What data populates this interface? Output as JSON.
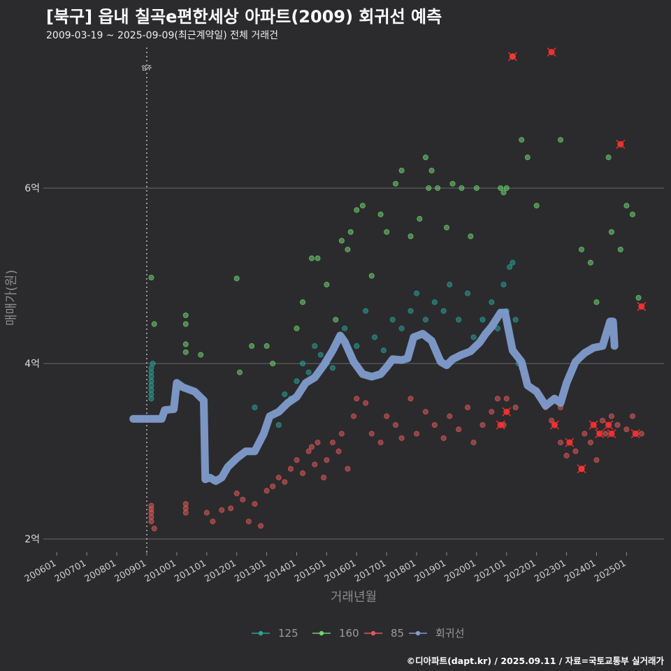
{
  "title": "[북구] 읍내 칠곡e편한세상 아파트(2009) 회귀선 예측",
  "subtitle": "2009-03-19 ~ 2025-09-09(최근계약일) 전체 거래건",
  "credit": "©디아파트(dapt.kr) / 2025.09.11 / 자료=국토교통부 실거래가",
  "chart_data": {
    "type": "scatter",
    "xlabel": "거래년월",
    "ylabel": "매매가(원)",
    "x_ticks": [
      "200601",
      "200701",
      "200801",
      "200901",
      "201001",
      "201101",
      "201201",
      "201301",
      "201401",
      "201501",
      "201601",
      "201701",
      "201801",
      "201901",
      "202001",
      "202101",
      "202201",
      "202301",
      "202401",
      "202501"
    ],
    "y_ticks": [
      {
        "value": 2,
        "label": "2억"
      },
      {
        "value": 4,
        "label": "4억"
      },
      {
        "value": 6,
        "label": "6억"
      }
    ],
    "xlim": [
      2005.55,
      2026.25
    ],
    "ylim": [
      1.85,
      7.65
    ],
    "grid": true,
    "legend_position": "bottom",
    "annotation": {
      "x": 2009.0,
      "label": "입주"
    },
    "colors": {
      "125": "#2aa198",
      "160": "#6fd36f",
      "85": "#e05a5a",
      "회귀선": "#7f9ccc"
    },
    "series": [
      {
        "name": "125",
        "points": [
          [
            2009.15,
            3.95
          ],
          [
            2009.15,
            3.9
          ],
          [
            2009.15,
            3.85
          ],
          [
            2009.15,
            3.8
          ],
          [
            2009.15,
            3.75
          ],
          [
            2009.15,
            3.7
          ],
          [
            2009.15,
            3.65
          ],
          [
            2009.15,
            3.6
          ],
          [
            2009.2,
            4.0
          ],
          [
            2012.6,
            3.5
          ],
          [
            2013.4,
            3.3
          ],
          [
            2013.6,
            3.65
          ],
          [
            2013.8,
            3.6
          ],
          [
            2014.0,
            3.8
          ],
          [
            2014.2,
            4.0
          ],
          [
            2014.4,
            3.9
          ],
          [
            2014.6,
            4.2
          ],
          [
            2014.8,
            4.1
          ],
          [
            2015.0,
            4.0
          ],
          [
            2015.2,
            3.95
          ],
          [
            2015.4,
            4.3
          ],
          [
            2015.6,
            4.4
          ],
          [
            2015.8,
            4.1
          ],
          [
            2016.0,
            4.2
          ],
          [
            2016.3,
            4.6
          ],
          [
            2016.6,
            4.3
          ],
          [
            2016.9,
            4.15
          ],
          [
            2017.2,
            4.5
          ],
          [
            2017.5,
            4.4
          ],
          [
            2017.8,
            4.6
          ],
          [
            2018.0,
            4.8
          ],
          [
            2018.3,
            4.5
          ],
          [
            2018.6,
            4.7
          ],
          [
            2018.9,
            4.6
          ],
          [
            2019.1,
            4.9
          ],
          [
            2019.4,
            4.5
          ],
          [
            2019.7,
            4.8
          ],
          [
            2019.9,
            4.3
          ],
          [
            2020.2,
            4.5
          ],
          [
            2020.5,
            4.7
          ],
          [
            2020.7,
            4.4
          ],
          [
            2020.9,
            4.9
          ],
          [
            2021.0,
            4.6
          ],
          [
            2021.1,
            5.1
          ],
          [
            2021.2,
            5.15
          ],
          [
            2021.3,
            4.5
          ],
          [
            2021.4,
            4.0
          ]
        ]
      },
      {
        "name": "160",
        "points": [
          [
            2009.15,
            4.98
          ],
          [
            2009.25,
            4.45
          ],
          [
            2010.3,
            4.55
          ],
          [
            2010.3,
            4.45
          ],
          [
            2010.3,
            4.22
          ],
          [
            2010.3,
            4.13
          ],
          [
            2010.8,
            4.1
          ],
          [
            2012.0,
            4.97
          ],
          [
            2012.1,
            3.9
          ],
          [
            2012.5,
            4.2
          ],
          [
            2013.0,
            4.2
          ],
          [
            2013.2,
            4.0
          ],
          [
            2014.0,
            4.4
          ],
          [
            2014.2,
            4.7
          ],
          [
            2014.5,
            5.2
          ],
          [
            2014.7,
            5.2
          ],
          [
            2015.0,
            4.9
          ],
          [
            2015.3,
            4.5
          ],
          [
            2015.5,
            5.4
          ],
          [
            2015.7,
            5.3
          ],
          [
            2015.8,
            5.5
          ],
          [
            2016.0,
            5.75
          ],
          [
            2016.2,
            5.8
          ],
          [
            2016.5,
            5.0
          ],
          [
            2016.8,
            5.7
          ],
          [
            2017.0,
            5.5
          ],
          [
            2017.3,
            6.05
          ],
          [
            2017.5,
            6.2
          ],
          [
            2017.8,
            5.45
          ],
          [
            2018.1,
            5.65
          ],
          [
            2018.3,
            6.35
          ],
          [
            2018.4,
            6.0
          ],
          [
            2018.5,
            6.2
          ],
          [
            2018.7,
            6.0
          ],
          [
            2019.0,
            5.55
          ],
          [
            2019.2,
            6.05
          ],
          [
            2019.5,
            6.0
          ],
          [
            2019.8,
            5.45
          ],
          [
            2020.0,
            6.0
          ],
          [
            2020.8,
            6.0
          ],
          [
            2020.9,
            5.95
          ],
          [
            2021.0,
            6.0
          ],
          [
            2021.2,
            7.5
          ],
          [
            2021.5,
            6.55
          ],
          [
            2021.7,
            6.35
          ],
          [
            2022.0,
            5.8
          ],
          [
            2022.8,
            6.55
          ],
          [
            2023.5,
            5.3
          ],
          [
            2023.8,
            5.15
          ],
          [
            2024.0,
            4.7
          ],
          [
            2024.4,
            6.35
          ],
          [
            2024.5,
            5.5
          ],
          [
            2024.8,
            5.3
          ],
          [
            2025.0,
            5.8
          ],
          [
            2025.2,
            5.7
          ],
          [
            2025.4,
            4.75
          ]
        ]
      },
      {
        "name": "85",
        "points": [
          [
            2009.15,
            2.38
          ],
          [
            2009.15,
            2.34
          ],
          [
            2009.15,
            2.3
          ],
          [
            2009.15,
            2.25
          ],
          [
            2009.15,
            2.2
          ],
          [
            2009.25,
            2.12
          ],
          [
            2010.3,
            2.4
          ],
          [
            2010.3,
            2.35
          ],
          [
            2010.3,
            2.3
          ],
          [
            2011.0,
            2.3
          ],
          [
            2011.2,
            2.2
          ],
          [
            2011.5,
            2.33
          ],
          [
            2011.8,
            2.35
          ],
          [
            2012.0,
            2.52
          ],
          [
            2012.2,
            2.45
          ],
          [
            2012.4,
            2.2
          ],
          [
            2012.6,
            2.4
          ],
          [
            2012.8,
            2.15
          ],
          [
            2013.0,
            2.55
          ],
          [
            2013.2,
            2.6
          ],
          [
            2013.4,
            2.7
          ],
          [
            2013.6,
            2.65
          ],
          [
            2013.8,
            2.8
          ],
          [
            2014.0,
            2.9
          ],
          [
            2014.2,
            2.75
          ],
          [
            2014.4,
            3.0
          ],
          [
            2014.5,
            3.05
          ],
          [
            2014.6,
            2.85
          ],
          [
            2014.7,
            3.1
          ],
          [
            2014.9,
            2.7
          ],
          [
            2015.0,
            2.9
          ],
          [
            2015.2,
            3.1
          ],
          [
            2015.4,
            3.0
          ],
          [
            2015.5,
            3.2
          ],
          [
            2015.7,
            2.8
          ],
          [
            2015.9,
            3.4
          ],
          [
            2016.0,
            3.6
          ],
          [
            2016.3,
            3.55
          ],
          [
            2016.5,
            3.2
          ],
          [
            2016.8,
            3.1
          ],
          [
            2017.0,
            3.4
          ],
          [
            2017.3,
            3.3
          ],
          [
            2017.5,
            3.15
          ],
          [
            2017.8,
            3.6
          ],
          [
            2018.0,
            3.2
          ],
          [
            2018.3,
            3.45
          ],
          [
            2018.6,
            3.3
          ],
          [
            2018.9,
            3.15
          ],
          [
            2019.1,
            3.4
          ],
          [
            2019.4,
            3.25
          ],
          [
            2019.7,
            3.5
          ],
          [
            2019.9,
            3.1
          ],
          [
            2020.2,
            3.3
          ],
          [
            2020.5,
            3.45
          ],
          [
            2020.7,
            3.6
          ],
          [
            2020.9,
            3.3
          ],
          [
            2021.0,
            3.6
          ],
          [
            2021.3,
            3.5
          ],
          [
            2021.5,
            3.95
          ],
          [
            2021.7,
            3.8
          ],
          [
            2022.0,
            3.7
          ],
          [
            2022.3,
            3.5
          ],
          [
            2022.5,
            3.35
          ],
          [
            2022.8,
            3.1
          ],
          [
            2023.0,
            2.95
          ],
          [
            2023.3,
            3.0
          ],
          [
            2023.6,
            3.2
          ],
          [
            2023.8,
            3.1
          ],
          [
            2024.0,
            2.9
          ],
          [
            2024.3,
            3.2
          ],
          [
            2024.5,
            3.4
          ],
          [
            2024.7,
            3.3
          ],
          [
            2025.0,
            3.25
          ],
          [
            2025.2,
            3.4
          ],
          [
            2025.5,
            3.2
          ],
          [
            2021.6,
            3.88
          ],
          [
            2022.8,
            3.5
          ],
          [
            2023.5,
            2.8
          ],
          [
            2024.2,
            3.35
          ]
        ]
      },
      {
        "name": "회귀선",
        "points": [
          [
            2008.55,
            3.37
          ],
          [
            2009.0,
            3.37
          ],
          [
            2009.5,
            3.37
          ],
          [
            2009.6,
            3.47
          ],
          [
            2009.9,
            3.48
          ],
          [
            2010.0,
            3.78
          ],
          [
            2010.2,
            3.73
          ],
          [
            2010.6,
            3.68
          ],
          [
            2010.9,
            3.58
          ],
          [
            2010.95,
            2.68
          ],
          [
            2011.1,
            2.7
          ],
          [
            2011.3,
            2.66
          ],
          [
            2011.5,
            2.7
          ],
          [
            2011.7,
            2.82
          ],
          [
            2012.0,
            2.92
          ],
          [
            2012.3,
            3.0
          ],
          [
            2012.6,
            3.0
          ],
          [
            2012.9,
            3.2
          ],
          [
            2013.1,
            3.4
          ],
          [
            2013.4,
            3.45
          ],
          [
            2013.7,
            3.55
          ],
          [
            2014.0,
            3.62
          ],
          [
            2014.3,
            3.78
          ],
          [
            2014.6,
            3.84
          ],
          [
            2014.9,
            3.98
          ],
          [
            2015.2,
            4.15
          ],
          [
            2015.45,
            4.32
          ],
          [
            2015.6,
            4.25
          ],
          [
            2015.9,
            4.02
          ],
          [
            2016.2,
            3.88
          ],
          [
            2016.5,
            3.85
          ],
          [
            2016.8,
            3.88
          ],
          [
            2017.0,
            3.96
          ],
          [
            2017.2,
            4.05
          ],
          [
            2017.5,
            4.04
          ],
          [
            2017.7,
            4.06
          ],
          [
            2017.9,
            4.3
          ],
          [
            2018.2,
            4.34
          ],
          [
            2018.5,
            4.26
          ],
          [
            2018.8,
            4.02
          ],
          [
            2019.0,
            3.98
          ],
          [
            2019.2,
            4.05
          ],
          [
            2019.5,
            4.1
          ],
          [
            2019.8,
            4.14
          ],
          [
            2020.1,
            4.24
          ],
          [
            2020.3,
            4.34
          ],
          [
            2020.5,
            4.42
          ],
          [
            2020.8,
            4.58
          ],
          [
            2020.95,
            4.58
          ],
          [
            2021.2,
            4.15
          ],
          [
            2021.5,
            4.02
          ],
          [
            2021.7,
            3.75
          ],
          [
            2022.0,
            3.68
          ],
          [
            2022.3,
            3.52
          ],
          [
            2022.6,
            3.6
          ],
          [
            2022.8,
            3.55
          ],
          [
            2023.0,
            3.78
          ],
          [
            2023.3,
            4.02
          ],
          [
            2023.6,
            4.12
          ],
          [
            2023.9,
            4.18
          ],
          [
            2024.2,
            4.2
          ],
          [
            2024.45,
            4.48
          ],
          [
            2024.55,
            4.48
          ],
          [
            2024.6,
            4.2
          ]
        ]
      }
    ],
    "highlighted_points": [
      [
        2021.2,
        7.5
      ],
      [
        2022.5,
        7.55
      ],
      [
        2024.8,
        6.5
      ],
      [
        2025.5,
        4.65
      ],
      [
        2020.8,
        3.3
      ],
      [
        2021.0,
        3.45
      ],
      [
        2022.6,
        3.3
      ],
      [
        2023.1,
        3.1
      ],
      [
        2023.5,
        2.8
      ],
      [
        2023.9,
        3.3
      ],
      [
        2024.1,
        3.2
      ],
      [
        2024.4,
        3.3
      ],
      [
        2024.5,
        3.2
      ],
      [
        2025.3,
        3.2
      ]
    ]
  }
}
